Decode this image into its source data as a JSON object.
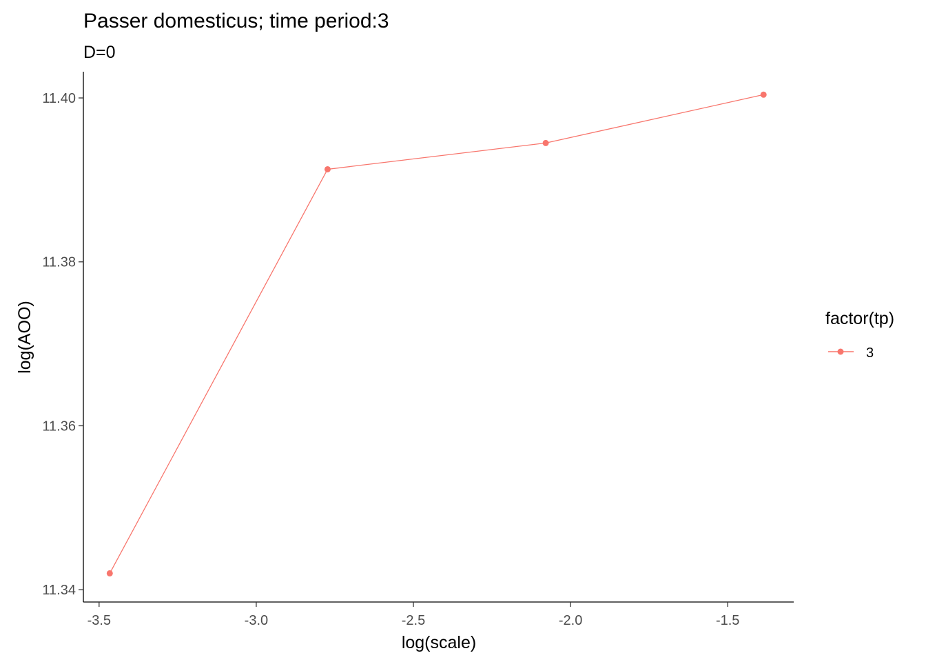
{
  "chart_data": {
    "type": "line",
    "title": "Passer domesticus; time period:3",
    "subtitle": "D=0",
    "xlabel": "log(scale)",
    "ylabel": "log(AOO)",
    "xlim": [
      -3.55,
      -1.29
    ],
    "ylim": [
      11.3385,
      11.4032
    ],
    "x_ticks": [
      -3.5,
      -3.0,
      -2.5,
      -2.0,
      -1.5
    ],
    "x_tick_labels": [
      "-3.5",
      "-3.0",
      "-2.5",
      "-2.0",
      "-1.5"
    ],
    "y_ticks": [
      11.34,
      11.36,
      11.38,
      11.4
    ],
    "y_tick_labels": [
      "11.34",
      "11.36",
      "11.38",
      "11.40"
    ],
    "grid": false,
    "legend": {
      "title": "factor(tp)",
      "position": "right"
    },
    "series": [
      {
        "name": "3",
        "color": "#F8766D",
        "x": [
          -3.466,
          -2.773,
          -2.079,
          -1.386
        ],
        "y": [
          11.342,
          11.3913,
          11.3945,
          11.4004
        ]
      }
    ]
  }
}
